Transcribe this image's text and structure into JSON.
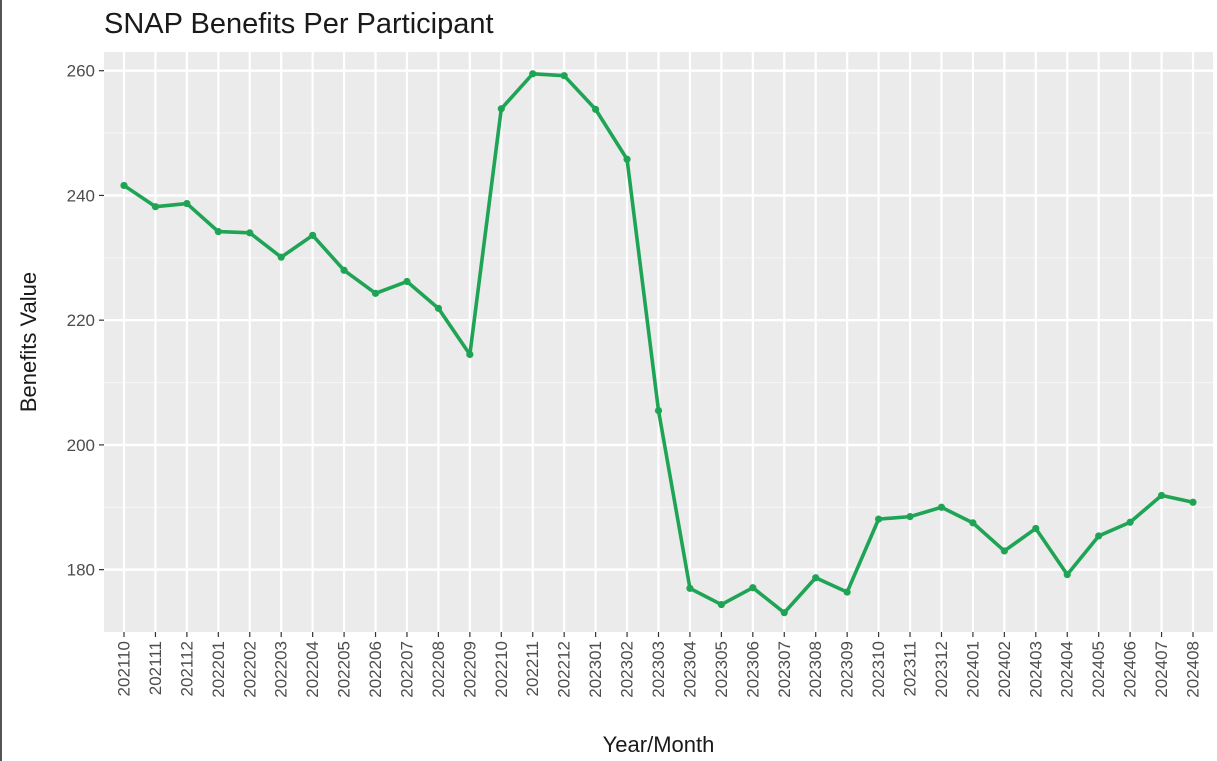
{
  "chart_data": {
    "type": "line",
    "title": "SNAP Benefits Per Participant",
    "xlabel": "Year/Month",
    "ylabel": "Benefits Value",
    "ylim": [
      170,
      263
    ],
    "yticks": [
      180,
      200,
      220,
      240,
      260
    ],
    "grid": true,
    "categories": [
      "202110",
      "202111",
      "202112",
      "202201",
      "202202",
      "202203",
      "202204",
      "202205",
      "202206",
      "202207",
      "202208",
      "202209",
      "202210",
      "202211",
      "202212",
      "202301",
      "202302",
      "202303",
      "202304",
      "202305",
      "202306",
      "202307",
      "202308",
      "202309",
      "202310",
      "202311",
      "202312",
      "202401",
      "202402",
      "202403",
      "202404",
      "202405",
      "202406",
      "202407",
      "202408"
    ],
    "series": [
      {
        "color": "#1fa455",
        "values": [
          241.6,
          238.2,
          238.7,
          234.2,
          234.0,
          230.1,
          233.6,
          228.0,
          224.3,
          226.2,
          221.9,
          214.5,
          253.9,
          259.5,
          259.2,
          253.8,
          245.8,
          205.5,
          177.0,
          174.4,
          177.1,
          173.1,
          178.7,
          176.4,
          188.1,
          188.5,
          190.0,
          187.5,
          183.0,
          186.6,
          179.2,
          185.4,
          187.6,
          191.9,
          190.8
        ]
      }
    ]
  }
}
